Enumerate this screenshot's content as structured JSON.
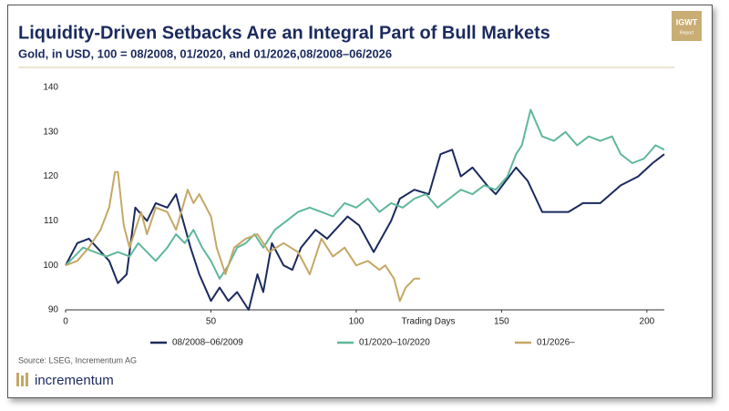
{
  "chart_data": {
    "type": "line",
    "title": "Liquidity-Driven Setbacks Are an Integral Part of Bull Markets",
    "subtitle": "Gold, in USD, 100 = 08/2008, 01/2020, and 01/2026,08/2008–06/2026",
    "x_label": "Trading Days",
    "source": "Source: LSEG, Incrementum AG",
    "brand": "incrementum",
    "badge_title": "IGWT",
    "badge_subtitle": "Report",
    "xlim": [
      0,
      206
    ],
    "xticks": [
      0,
      50,
      100,
      150,
      200
    ],
    "ylim": [
      90,
      140
    ],
    "yticks": [
      90,
      100,
      110,
      120,
      130,
      140
    ],
    "grid": false,
    "legend": "bottom",
    "series": [
      {
        "name": "08/2008–06/2009",
        "color": "#1b2a5e",
        "x": [
          0,
          4,
          8,
          15,
          18,
          21,
          24,
          28,
          31,
          35,
          38,
          40,
          43,
          46,
          50,
          53,
          56,
          59,
          63,
          66,
          68,
          71,
          75,
          78,
          81,
          86,
          90,
          97,
          101,
          106,
          112,
          115,
          120,
          125,
          129,
          133,
          136,
          140,
          145,
          148,
          155,
          159,
          164,
          169,
          173,
          178,
          184,
          191,
          197,
          202,
          206
        ],
        "values": [
          100,
          105,
          106,
          101,
          96,
          98,
          113,
          110,
          114,
          113,
          116,
          111,
          104,
          98,
          92,
          95,
          92,
          94,
          90,
          98,
          94,
          105,
          100,
          99,
          104,
          108,
          106,
          111,
          109,
          103,
          110,
          115,
          117,
          116,
          125,
          126,
          120,
          122,
          118,
          116,
          122,
          119,
          112,
          112,
          112,
          114,
          114,
          118,
          120,
          123,
          125
        ]
      },
      {
        "name": "01/2020–10/2020",
        "color": "#5fb89b",
        "x": [
          0,
          3,
          6,
          10,
          14,
          18,
          22,
          25,
          28,
          31,
          35,
          38,
          41,
          44,
          47,
          50,
          53,
          56,
          59,
          62,
          65,
          68,
          72,
          76,
          80,
          84,
          88,
          92,
          96,
          100,
          104,
          108,
          112,
          116,
          120,
          124,
          128,
          132,
          136,
          140,
          144,
          148,
          152,
          155,
          157,
          160,
          164,
          168,
          172,
          176,
          180,
          184,
          188,
          191,
          195,
          199,
          203,
          206
        ],
        "values": [
          100,
          102,
          104,
          103,
          102,
          103,
          102,
          105,
          103,
          101,
          104,
          107,
          105,
          108,
          104,
          101,
          97,
          100,
          104,
          105,
          107,
          104,
          108,
          110,
          112,
          113,
          112,
          111,
          114,
          113,
          115,
          112,
          114,
          113,
          115,
          116,
          113,
          115,
          117,
          116,
          118,
          117,
          120,
          125,
          127,
          135,
          129,
          128,
          130,
          127,
          129,
          128,
          129,
          125,
          123,
          124,
          127,
          126
        ]
      },
      {
        "name": "01/2026–",
        "color": "#c4a866",
        "x": [
          0,
          4,
          8,
          12,
          15,
          17,
          18,
          20,
          22,
          26,
          28,
          31,
          35,
          38,
          42,
          44,
          46,
          50,
          52,
          55,
          58,
          62,
          66,
          70,
          75,
          80,
          84,
          88,
          92,
          96,
          100,
          104,
          108,
          110,
          113,
          115,
          117,
          120,
          122
        ],
        "values": [
          100,
          101,
          104,
          108,
          113,
          121,
          121,
          109,
          104,
          112,
          107,
          113,
          112,
          108,
          117,
          114,
          116,
          111,
          104,
          98,
          104,
          106,
          107,
          103,
          105,
          103,
          98,
          106,
          102,
          104,
          100,
          101,
          99,
          100,
          97,
          92,
          95,
          97,
          97
        ]
      }
    ]
  }
}
